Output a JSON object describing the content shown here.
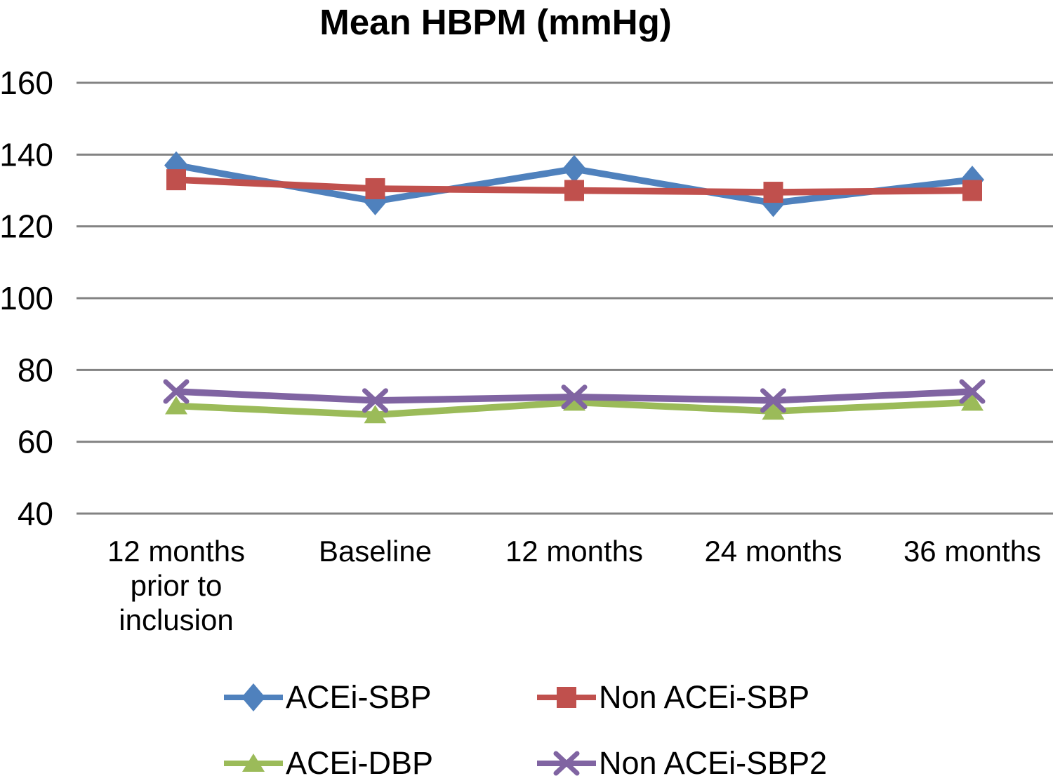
{
  "chart_data": {
    "type": "line",
    "title": "Mean HBPM (mmHg)",
    "xlabel": "",
    "ylabel": "",
    "ylim": [
      40,
      160
    ],
    "yticks": [
      160,
      140,
      120,
      100,
      80,
      60,
      40
    ],
    "grid": true,
    "gridline_color": "#838383",
    "background_color": "#ffffff",
    "text_color": "#000000",
    "legend_position": "bottom",
    "categories": [
      "12 months\nprior to\ninclusion",
      "Baseline",
      "12 months",
      "24 months",
      "36 months"
    ],
    "series": [
      {
        "name": "ACEi-SBP",
        "color": "#4F81BD",
        "marker": "diamond",
        "values": [
          137,
          127,
          136,
          126.5,
          133
        ]
      },
      {
        "name": "Non ACEi-SBP",
        "color": "#C0504D",
        "marker": "square",
        "values": [
          133,
          130.5,
          130,
          129.5,
          130
        ]
      },
      {
        "name": "ACEi-DBP",
        "color": "#9BBB59",
        "marker": "triangle",
        "values": [
          70,
          67.5,
          71,
          68.5,
          71
        ]
      },
      {
        "name": "Non ACEi-SBP2",
        "color": "#8064A2",
        "marker": "x",
        "values": [
          74,
          71.5,
          72.5,
          71.5,
          74
        ]
      }
    ]
  }
}
